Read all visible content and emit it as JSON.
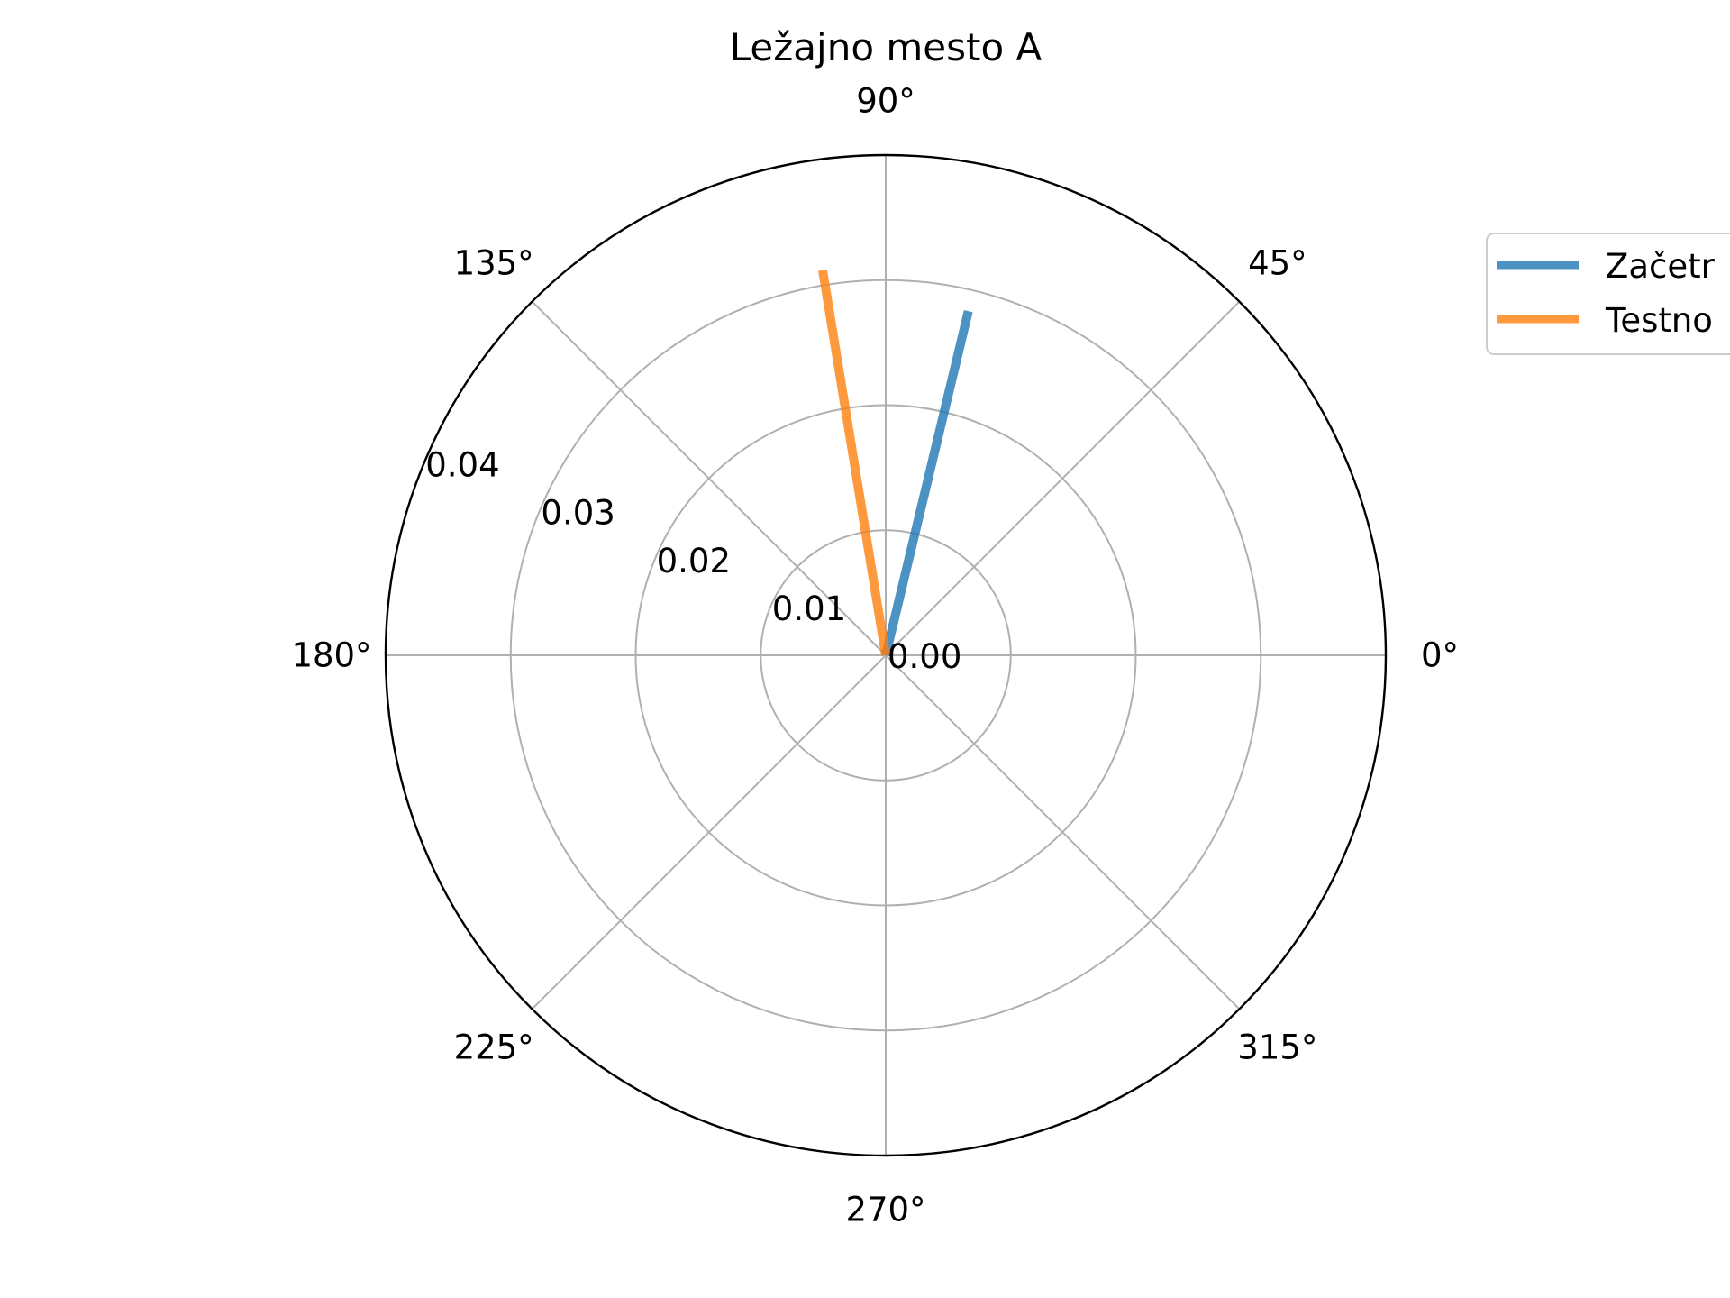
{
  "chart_data": {
    "type": "polar",
    "title": "Ležajno mesto A",
    "theta_ticks": [
      {
        "angle": 0,
        "label": "0°"
      },
      {
        "angle": 45,
        "label": "45°"
      },
      {
        "angle": 90,
        "label": "90°"
      },
      {
        "angle": 135,
        "label": "135°"
      },
      {
        "angle": 180,
        "label": "180°"
      },
      {
        "angle": 225,
        "label": "225°"
      },
      {
        "angle": 270,
        "label": "270°"
      },
      {
        "angle": 315,
        "label": "315°"
      }
    ],
    "r_ticks": [
      {
        "value": 0.0,
        "label": "0.00"
      },
      {
        "value": 0.01,
        "label": "0.01"
      },
      {
        "value": 0.02,
        "label": "0.02"
      },
      {
        "value": 0.03,
        "label": "0.03"
      },
      {
        "value": 0.04,
        "label": "0.04"
      }
    ],
    "rlim": [
      0,
      0.04
    ],
    "r_label_angle_deg": 157.5,
    "grid": true,
    "legend_position": "top-right",
    "series": [
      {
        "name": "Začetr",
        "color": "#1f77b4",
        "r": [
          0.0,
          0.0283
        ],
        "theta_deg": [
          0,
          76.5
        ]
      },
      {
        "name": "Testno",
        "color": "#ff7f0e",
        "r": [
          0.0,
          0.0312
        ],
        "theta_deg": [
          0,
          99.3
        ]
      }
    ]
  }
}
